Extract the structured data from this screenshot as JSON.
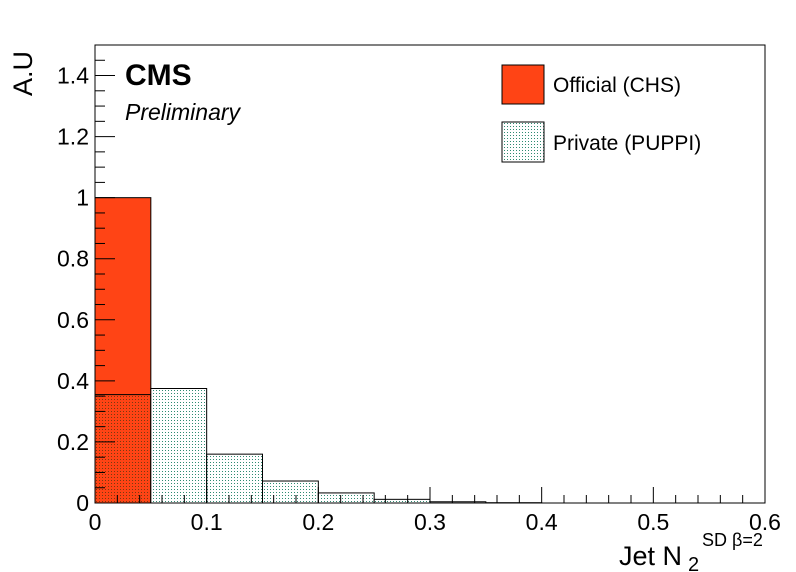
{
  "chart_data": {
    "type": "bar",
    "histogram": true,
    "x_axis": {
      "label_main": "Jet N",
      "label_sub": "2",
      "label_sup": "SD β=2",
      "range": [
        0,
        0.6
      ],
      "tick_labels": [
        "0",
        "0.1",
        "0.2",
        "0.3",
        "0.4",
        "0.5",
        "0.6"
      ]
    },
    "y_axis": {
      "label": "A.U",
      "range": [
        0,
        1.5
      ],
      "tick_labels": [
        "0",
        "0.2",
        "0.4",
        "0.6",
        "0.8",
        "1",
        "1.2",
        "1.4"
      ]
    },
    "bin_edges": [
      0,
      0.05,
      0.1,
      0.15,
      0.2,
      0.25,
      0.3,
      0.35,
      0.4,
      0.45,
      0.5,
      0.55,
      0.6
    ],
    "series": [
      {
        "name": "Official (CHS)",
        "color": "#ff4415",
        "style": "solid",
        "values": [
          1.0,
          0,
          0,
          0,
          0,
          0,
          0,
          0,
          0,
          0,
          0,
          0
        ]
      },
      {
        "name": "Private (PUPPI)",
        "color": "#2e8b72",
        "style": "hatched-dots",
        "values": [
          0.355,
          0.375,
          0.16,
          0.072,
          0.033,
          0.012,
          0.004,
          0.001,
          0,
          0,
          0,
          0
        ]
      }
    ],
    "annotations": {
      "experiment": "CMS",
      "status": "Preliminary"
    },
    "legend_position": "top-right",
    "grid": false
  }
}
